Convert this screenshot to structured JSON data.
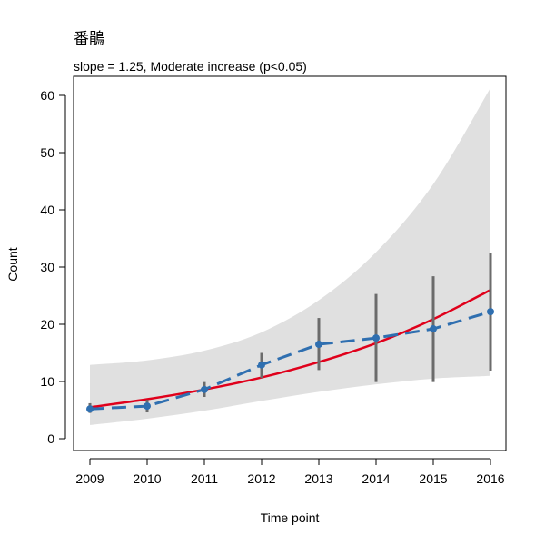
{
  "chart_data": {
    "type": "line",
    "title": "番鵑",
    "subtitle": "slope = 1.25, Moderate increase (p<0.05)",
    "xlabel": "Time point",
    "ylabel": "Count",
    "x": [
      2009,
      2010,
      2011,
      2012,
      2013,
      2014,
      2015,
      2016
    ],
    "xlim": [
      2009,
      2016
    ],
    "ylim": [
      0,
      60
    ],
    "y_ticks": [
      0,
      10,
      20,
      30,
      40,
      50,
      60
    ],
    "grid": false,
    "series": [
      {
        "kind": "observed",
        "color": "#2f6fb0",
        "style": "dashed-with-points",
        "values": [
          5.2,
          5.7,
          8.6,
          12.9,
          16.5,
          17.6,
          19.2,
          22.2
        ],
        "error_low": [
          4.5,
          4.6,
          7.3,
          10.6,
          12.0,
          9.9,
          9.9,
          11.9
        ],
        "error_high": [
          6.2,
          6.8,
          9.9,
          15.0,
          21.1,
          25.3,
          28.4,
          32.5
        ]
      },
      {
        "kind": "fitted-trend",
        "color": "#e0001b",
        "style": "solid",
        "values": [
          5.5,
          6.9,
          8.6,
          10.7,
          13.4,
          16.7,
          20.9,
          26.0
        ]
      },
      {
        "kind": "confidence-band",
        "color": "#e0e0e0",
        "lower": [
          2.4,
          3.5,
          4.9,
          6.6,
          8.2,
          9.5,
          10.5,
          11.0
        ],
        "upper": [
          12.9,
          13.7,
          15.4,
          18.6,
          24.2,
          32.6,
          44.5,
          61.3
        ]
      }
    ]
  }
}
